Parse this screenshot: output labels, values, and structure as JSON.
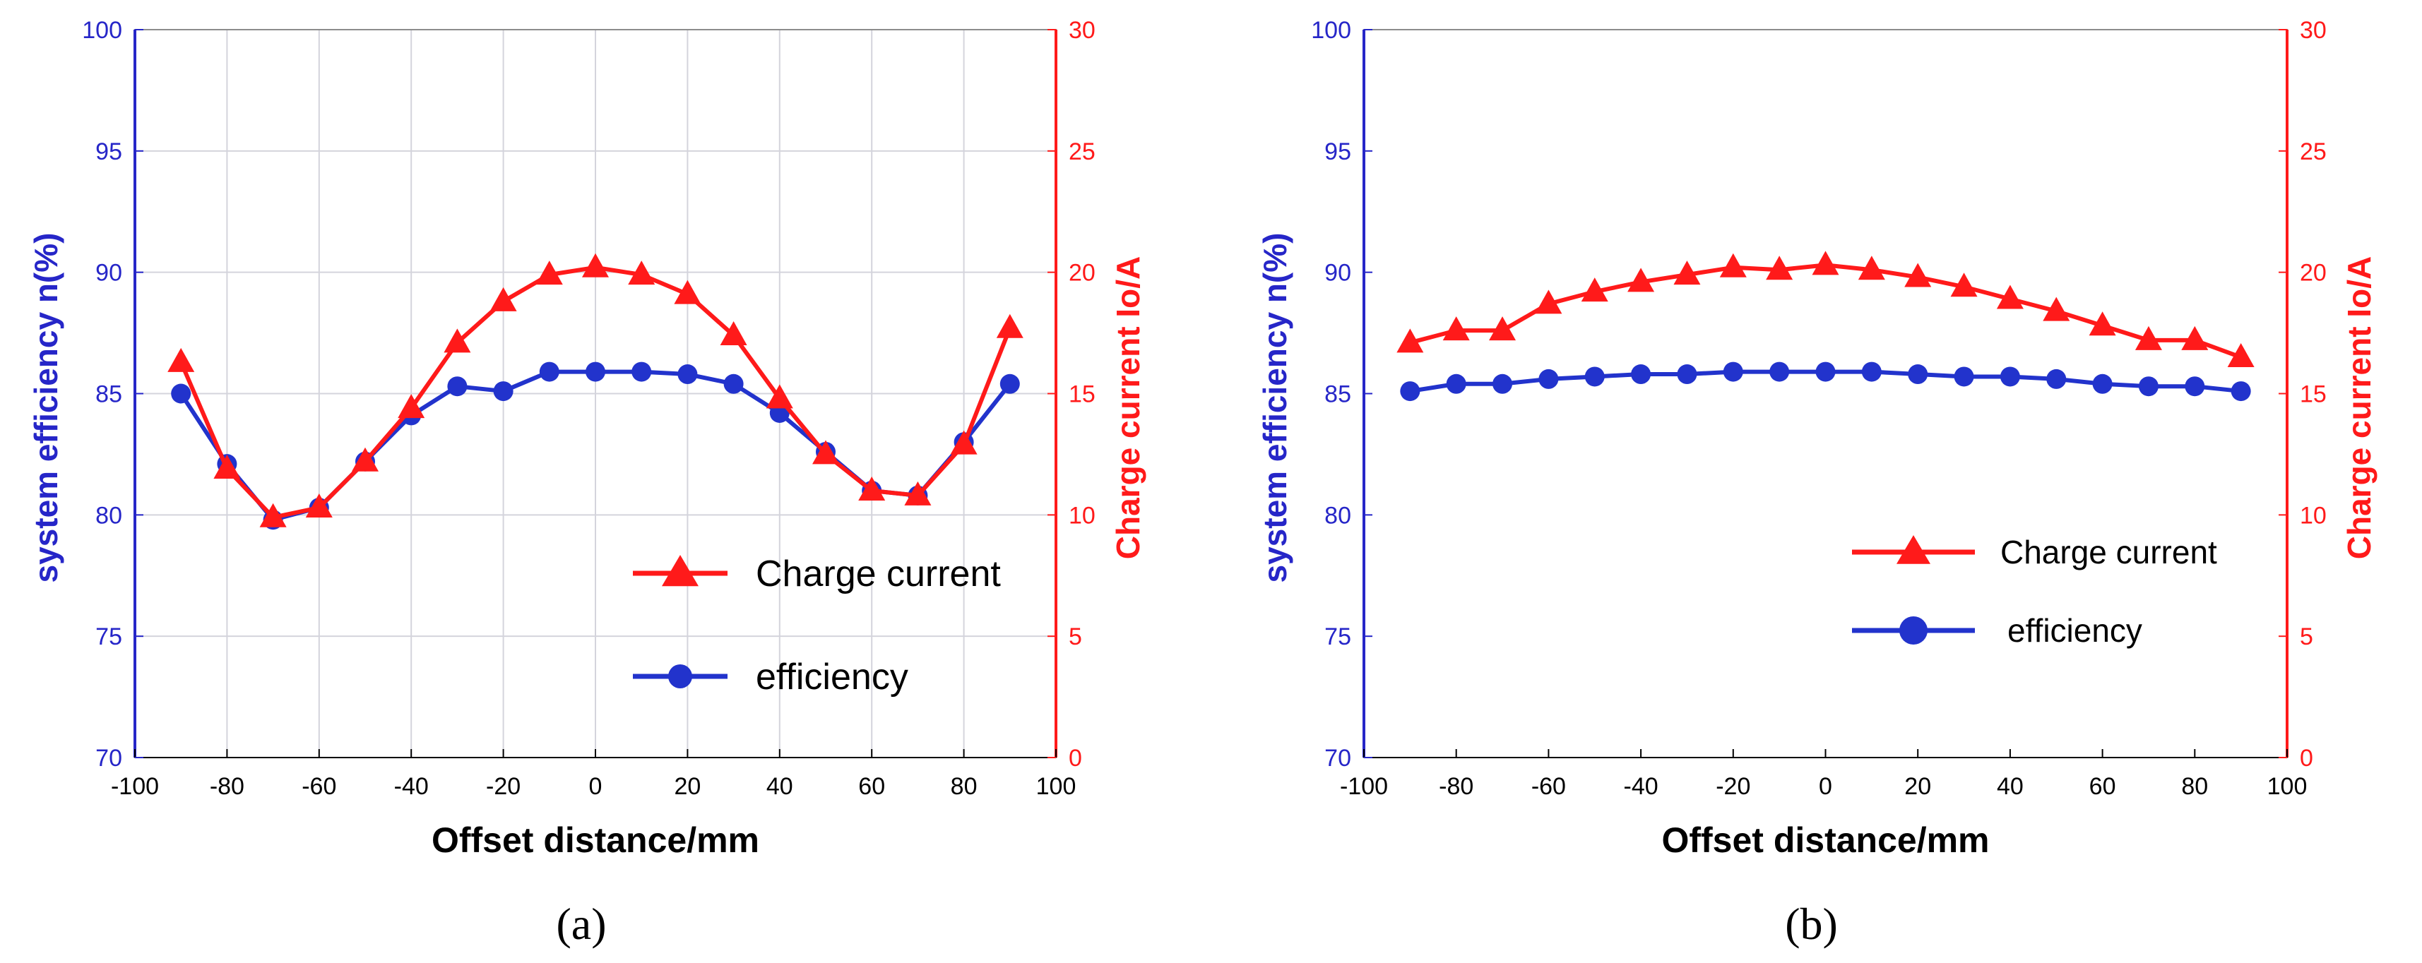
{
  "chart_data": [
    {
      "type": "line",
      "panel_label": "(a)",
      "xlabel": "Offset distance/mm",
      "ylabel_left": "system efficiency n(%)",
      "ylabel_right": "Charge current Io/A",
      "xlim": [
        -100,
        100
      ],
      "ylim_left": [
        70,
        100
      ],
      "ylim_right": [
        0,
        30
      ],
      "xticks": [
        -100,
        -80,
        -60,
        -40,
        -20,
        0,
        20,
        40,
        60,
        80,
        100
      ],
      "yticks_left": [
        70,
        75,
        80,
        85,
        90,
        95,
        100
      ],
      "yticks_right": [
        0,
        5,
        10,
        15,
        20,
        25,
        30
      ],
      "grid": true,
      "x": [
        -90,
        -80,
        -70,
        -60,
        -50,
        -40,
        -30,
        -20,
        -10,
        0,
        10,
        20,
        30,
        40,
        50,
        60,
        70,
        80,
        90
      ],
      "series": [
        {
          "name": "Charge current",
          "axis": "right",
          "marker": "triangle",
          "color": "#ff1a1a",
          "values": [
            16.3,
            11.9,
            9.9,
            10.3,
            12.2,
            14.4,
            17.1,
            18.8,
            19.9,
            20.2,
            19.9,
            19.1,
            17.4,
            14.8,
            12.5,
            11.0,
            10.8,
            12.9,
            17.7
          ]
        },
        {
          "name": "efficiency",
          "axis": "left",
          "marker": "circle",
          "color": "#2233cc",
          "values": [
            85.0,
            82.1,
            79.8,
            80.3,
            82.2,
            84.1,
            85.3,
            85.1,
            85.9,
            85.9,
            85.9,
            85.8,
            85.4,
            84.2,
            82.6,
            81.0,
            80.8,
            83.0,
            85.4
          ]
        }
      ],
      "legend": "lower-right"
    },
    {
      "type": "line",
      "panel_label": "(b)",
      "xlabel": "Offset distance/mm",
      "ylabel_left": "system efficiency n(%)",
      "ylabel_right": "Charge current Io/A",
      "xlim": [
        -100,
        100
      ],
      "ylim_left": [
        70,
        100
      ],
      "ylim_right": [
        0,
        30
      ],
      "xticks": [
        -100,
        -80,
        -60,
        -40,
        -20,
        0,
        20,
        40,
        60,
        80,
        100
      ],
      "yticks_left": [
        70,
        75,
        80,
        85,
        90,
        95,
        100
      ],
      "yticks_right": [
        0,
        5,
        10,
        15,
        20,
        25,
        30
      ],
      "grid": false,
      "x": [
        -90,
        -80,
        -70,
        -60,
        -50,
        -40,
        -30,
        -20,
        -10,
        0,
        10,
        20,
        30,
        40,
        50,
        60,
        70,
        80,
        90
      ],
      "series": [
        {
          "name": "Charge current",
          "axis": "right",
          "marker": "triangle",
          "color": "#ff1a1a",
          "values": [
            17.1,
            17.6,
            17.6,
            18.7,
            19.2,
            19.6,
            19.9,
            20.2,
            20.1,
            20.3,
            20.1,
            19.8,
            19.4,
            18.9,
            18.4,
            17.8,
            17.2,
            17.2,
            16.5
          ]
        },
        {
          "name": "efficiency",
          "axis": "left",
          "marker": "circle",
          "color": "#2233cc",
          "values": [
            85.1,
            85.4,
            85.4,
            85.6,
            85.7,
            85.8,
            85.8,
            85.9,
            85.9,
            85.9,
            85.9,
            85.8,
            85.7,
            85.7,
            85.6,
            85.4,
            85.3,
            85.3,
            85.1
          ]
        }
      ],
      "legend": "middle-right"
    }
  ],
  "colors": {
    "left_axis": "#2626c8",
    "right_axis": "#ff1a1a",
    "grid": "#d4d4dc",
    "frame": "#8c8c8c"
  }
}
